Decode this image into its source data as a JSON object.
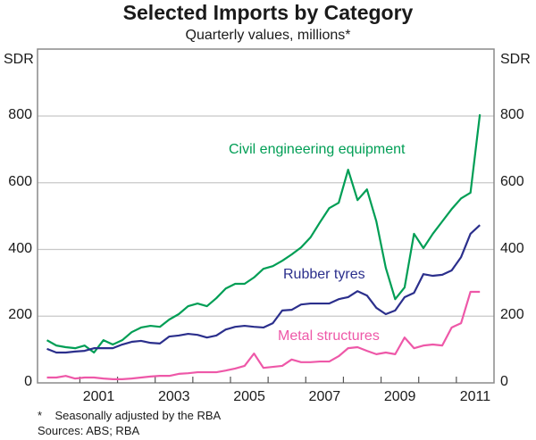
{
  "chart_data": {
    "type": "line",
    "title": "Selected Imports by Category",
    "subtitle": "Quarterly values, millions*",
    "ylabel_left": "SDR",
    "ylabel_right": "SDR",
    "xlabel": "",
    "ylim": [
      0,
      800
    ],
    "yticks": [
      0,
      200,
      400,
      600,
      800
    ],
    "ytick_labels": [
      "0",
      "200",
      "400",
      "600",
      "800"
    ],
    "xlim": [
      1999.875,
      2012.0
    ],
    "xtick_labels": [
      "2001",
      "2003",
      "2005",
      "2007",
      "2009",
      "2011"
    ],
    "grid": true,
    "x": [
      2000.125,
      2000.375,
      2000.625,
      2000.875,
      2001.125,
      2001.375,
      2001.625,
      2001.875,
      2002.125,
      2002.375,
      2002.625,
      2002.875,
      2003.125,
      2003.375,
      2003.625,
      2003.875,
      2004.125,
      2004.375,
      2004.625,
      2004.875,
      2005.125,
      2005.375,
      2005.625,
      2005.875,
      2006.125,
      2006.375,
      2006.625,
      2006.875,
      2007.125,
      2007.375,
      2007.625,
      2007.875,
      2008.125,
      2008.375,
      2008.625,
      2008.875,
      2009.125,
      2009.375,
      2009.625,
      2009.875,
      2010.125,
      2010.375,
      2010.625,
      2010.875,
      2011.125,
      2011.375
    ],
    "series": [
      {
        "name": "Civil engineering equipment",
        "color": "#009e55",
        "values": [
          128,
          112,
          107,
          104,
          112,
          91,
          128,
          115,
          128,
          152,
          166,
          171,
          168,
          190,
          206,
          230,
          238,
          230,
          254,
          283,
          297,
          297,
          316,
          342,
          350,
          366,
          385,
          406,
          436,
          481,
          524,
          540,
          639,
          548,
          580,
          484,
          345,
          251,
          286,
          447,
          404,
          447,
          484,
          521,
          553,
          570
        ]
      },
      {
        "name": "Rubber tyres",
        "color": "#2b2f8c",
        "values": [
          102,
          91,
          91,
          94,
          96,
          104,
          104,
          104,
          115,
          123,
          126,
          120,
          118,
          139,
          142,
          147,
          144,
          136,
          142,
          160,
          168,
          171,
          168,
          166,
          179,
          217,
          219,
          235,
          238,
          238,
          238,
          251,
          257,
          275,
          262,
          225,
          206,
          217,
          257,
          270,
          326,
          321,
          324,
          337,
          377,
          447
        ]
      },
      {
        "name": "Metal structures",
        "color": "#ee58a8",
        "values": [
          16,
          16,
          21,
          13,
          16,
          16,
          13,
          11,
          11,
          13,
          16,
          19,
          21,
          21,
          27,
          29,
          32,
          32,
          32,
          37,
          43,
          51,
          88,
          45,
          48,
          51,
          70,
          62,
          62,
          64,
          64,
          80,
          104,
          107,
          96,
          86,
          91,
          86,
          136,
          104,
          112,
          115,
          112,
          166,
          179,
          273
        ]
      }
    ],
    "last_points": [
      {
        "series": "Civil engineering equipment",
        "x": 2011.625,
        "value": 805
      },
      {
        "series": "Rubber tyres",
        "x": 2011.625,
        "value": 473
      },
      {
        "series": "Metal structures",
        "x": 2011.625,
        "value": 273
      }
    ],
    "legend": "inline labels",
    "footnotes": [
      "*    Seasonally adjusted by the RBA",
      "Sources: ABS; RBA"
    ]
  }
}
